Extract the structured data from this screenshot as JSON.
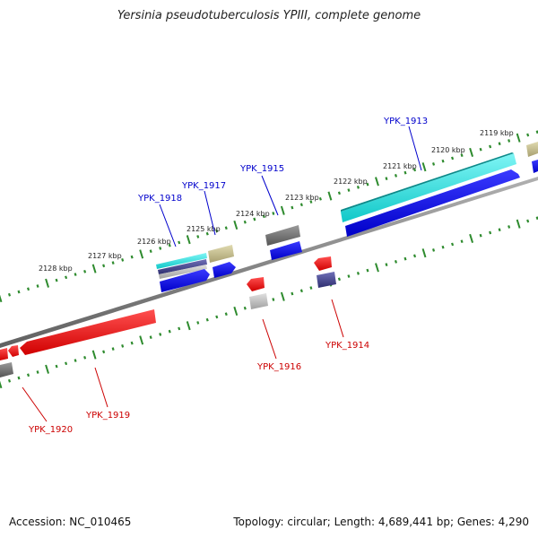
{
  "title": "Yersinia pseudotuberculosis YPIII, complete genome",
  "footer": {
    "accession": "Accession: NC_010465",
    "info": "Topology: circular; Length: 4,689,441 bp; Genes: 4,290"
  },
  "colors": {
    "backbone": "#808080",
    "tick": "#2e8b2e",
    "forward_label": "#0000cc",
    "reverse_label": "#cc0000",
    "blue": "#0000ee",
    "cyan": "#22e0e0",
    "red": "#ee1111",
    "gray": "#777777",
    "khaki": "#c8c090",
    "slate": "#4a4a90",
    "lightgray": "#bbbbbb"
  },
  "scale_labels": [
    "2119 kbp",
    "2120 kbp",
    "2121 kbp",
    "2122 kbp",
    "2123 kbp",
    "2124 kbp",
    "2125 kbp",
    "2126 kbp",
    "2127 kbp",
    "2128 kbp"
  ],
  "gene_labels": {
    "forward": [
      "YPK_1913",
      "YPK_1915",
      "YPK_1917",
      "YPK_1918"
    ],
    "reverse": [
      "YPK_1914",
      "YPK_1916",
      "YPK_1919",
      "YPK_1920"
    ]
  }
}
